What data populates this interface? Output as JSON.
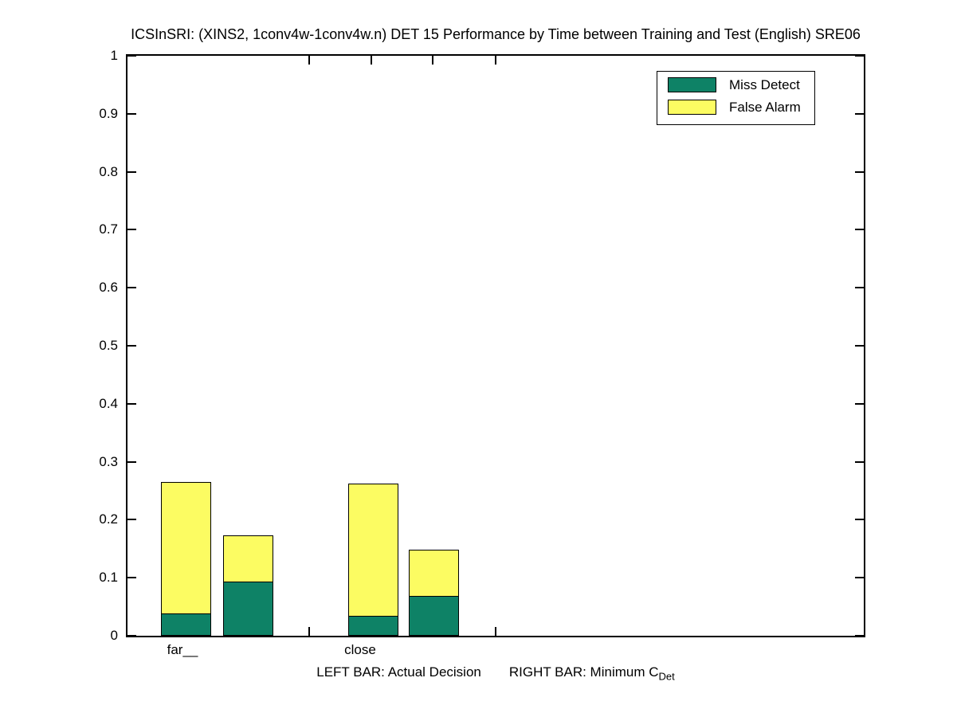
{
  "chart_data": {
    "type": "bar",
    "stacked": true,
    "title": "ICSInSRI: (XINS2, 1conv4w-1conv4w.n) DET 15 Performance by Time between Training and Test (English) SRE06",
    "xlabel_left": "LEFT BAR: Actual Decision",
    "xlabel_right": "RIGHT BAR: Minimum C",
    "xlabel_subscript": "Det",
    "categories": [
      "far__",
      "close"
    ],
    "legend": [
      {
        "label": "Miss Detect",
        "color_key": "miss_detect"
      },
      {
        "label": "False Alarm",
        "color_key": "false_alarm"
      }
    ],
    "colors": {
      "miss_detect": "#0e8266",
      "false_alarm": "#fcfc62",
      "axis": "#000000",
      "background": "#ffffff"
    },
    "ylim": [
      0,
      1
    ],
    "yticks": [
      1,
      0.9,
      0.8,
      0.7,
      0.6,
      0.5,
      0.4,
      0.3,
      0.2,
      0.1,
      0
    ],
    "grid": false,
    "legend_position": "top-right",
    "groups": [
      {
        "category": "far__",
        "bars": [
          {
            "name": "Actual Decision",
            "miss_detect": 0.038,
            "false_alarm": 0.227,
            "total": 0.265
          },
          {
            "name": "Minimum CDet",
            "miss_detect": 0.093,
            "false_alarm": 0.079,
            "total": 0.172
          }
        ]
      },
      {
        "category": "close",
        "bars": [
          {
            "name": "Actual Decision",
            "miss_detect": 0.034,
            "false_alarm": 0.228,
            "total": 0.262
          },
          {
            "name": "Minimum CDet",
            "miss_detect": 0.069,
            "false_alarm": 0.08,
            "total": 0.149
          }
        ]
      }
    ]
  }
}
